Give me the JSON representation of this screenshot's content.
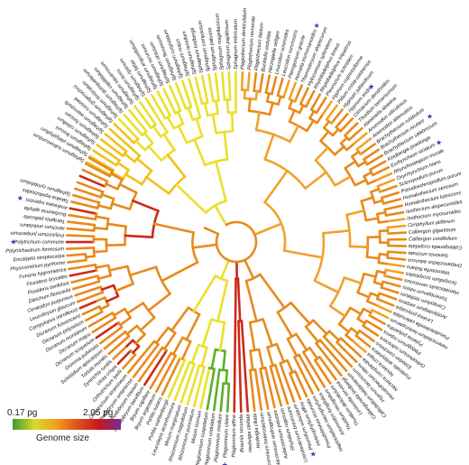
{
  "figure": {
    "legend": {
      "min": "0.17 pg",
      "max": "2.05 pg",
      "title": "Genome size",
      "gradient": [
        "#3a9c2e",
        "#d9d92a",
        "#f0a020",
        "#e05020",
        "#c41818",
        "#7a2a9a"
      ]
    },
    "star_symbol": "★",
    "branch_colors": {
      "orange": "#e88a1c",
      "gold": "#f2c218",
      "yellow": "#eae02a",
      "green": "#5bb02a",
      "red": "#cc2a1a",
      "lightorange": "#f2a12c"
    }
  },
  "taxa": [
    "Sphagnum subsecundum",
    "Sphagnum platyphyllum",
    "Sphagnum lescurii",
    "Sphagnum rubellum",
    "Sphagnum fuscum",
    "Sphagnum warnstorfii",
    "Sphagnum russowii",
    "Sphagnum girgensohnii",
    "Sphagnum fimbriatum",
    "Sphagnum quinquefarium",
    "Sphagnum capillifolium",
    "Sphagnum squarrosum",
    "Sphagnum teres",
    "Sphagnum riparium",
    "Sphagnum fallax",
    "Sphagnum angustifolium",
    "Sphagnum recurvum",
    "Sphagnum obtusum",
    "Sphagnum flexuosum",
    "Sphagnum cuspidatum",
    "Sphagnum majus",
    "Sphagnum tenellum",
    "Sphagnum lindbergii",
    "Sphagnum compactum",
    "Sphagnum palustre",
    "Sphagnum magellanicum",
    "Sphagnum papillosum",
    "Sphagnum imbricatum",
    "Plagiothecium denticulatum",
    "Plagiothecium nemorale",
    "Plagiothecium laetum",
    "Buckiella undulata",
    "Herzogiella seligeri",
    "Leucodon sciuroides",
    "Leucodon curvirostris",
    "Pterogonium gracile",
    "Homalia trichomanoides",
    "Thamnobryum alopecurum",
    "Hylocomium splendens",
    "Rhytidiadelphus loreus",
    "Rhytidiadelphus triquetrus",
    "Pleurozium schreberi",
    "Hypnum cupressiforme",
    "Ptilium crista-castrensis",
    "Hypnum jutlandicum",
    "Hypnum andoi",
    "Climacium dendroides",
    "Thuidium tamariscinum",
    "Abietinella abietina",
    "Anomodon viticulosus",
    "Anomodon attenuatus",
    "Brachythecium rutabulum",
    "Brachythecium rivulare",
    "Brachythecium salebrosum",
    "Kindbergia praelonga",
    "Eurhynchium striatum",
    "Rhynchostegium murale",
    "Oxyrrhynchium hians",
    "Scleropodium purum",
    "Pseudoscleropodium purum",
    "Homalothecium sericeum",
    "Homalothecium lutescens",
    "Isothecium alopecuroides",
    "Isothecium myosuroides",
    "Cirriphyllum piliferum",
    "Calliergon giganteum",
    "Calliergon cordifolium",
    "Calliergonella cuspidata",
    "Sanionia uncinata",
    "Drepanocladus aduncus",
    "Warnstorfia fluitans",
    "Scorpidium scorpioides",
    "Hamatocaulis vernicosus",
    "Tomentypnum nitens",
    "Campylium stellatum",
    "Amblystegium serpens",
    "Leskea polycarpa",
    "Pseudoleskeella catenulata",
    "Heterocladium heteropterum",
    "Pylaisia polyantha",
    "Platygyrium repens",
    "Orthothecium rufescens",
    "Entodon concinnus",
    "Fontinalis antipyretica",
    "Neckera crispa",
    "Neckera complanata",
    "Homalothecium nitens",
    "Hypnum lacunosum",
    "Callicladium haldanianum",
    "Calliergonella lindbergii",
    "Leskeella nervosa",
    "Thuidium delicatulum",
    "Thuidium recognitum",
    "Anomodon longifolius",
    "Haplocladium microphyllum",
    "Pseudoleskea incurvata",
    "Heterophyllium affine",
    "Pleuridium subulatum",
    "Loeskeobryum brevirostre",
    "Rhytidium rugosum",
    "Aulacomnium palustre",
    "Aulacomnium androgynum",
    "Aulacomnium heterostichum",
    "Hedwigia ciliata",
    "Hedwigia stellata",
    "Braunia secunda",
    "Plagiomnium affine",
    "Plagiomnium ciliare",
    "Plagiomnium medium",
    "Plagiomnium undulatum",
    "Plagiomnium cuspidatum",
    "Mnium hornum",
    "Rhizomnium punctatum",
    "Rhizomnium magnifolium",
    "Mnium marginatum",
    "Leucolepis acanthoneura",
    "Pohlia wahlenbergii",
    "Pohlia nutans",
    "Bryum argenteum",
    "Bryum capillare",
    "Rosulabryum laevifilum",
    "Rhodobryum roseum",
    "Rhodobryum ontariense",
    "Orthotrichum stramineum",
    "Orthotrichum lyellii",
    "Ulota crispa",
    "Syntrichia ruralis",
    "Tortula muralis",
    "Schistidium apocarpum",
    "Grimmia pulvinata",
    "Dicranum scoparium",
    "Dicranum majus",
    "Dicranum montanum",
    "Dicranum polysetum",
    "Dicranum fuscescens",
    "Campylopus introflexus",
    "Leucobryum glaucum",
    "Ceratodon purpureus",
    "Ditrichum flexicaule",
    "Fissidens taxifolius",
    "Fissidens bryoides",
    "Funaria hygrometrica",
    "Physcomitrium pyriforme",
    "Encalypta streptocarpa",
    "Polytrichastrum formosum",
    "Polytrichum commune",
    "Polytrichum juniperinum",
    "Atrichum undulatum",
    "Tetraphis pellucida",
    "Buxbaumia aphylla",
    "Andreaea rupestris",
    "Takakia lepidozioides",
    "Sphagnum cymbifolium"
  ],
  "starred": [
    "Polytrichum commune",
    "Andreaea rupestris",
    "Plagiomnium ciliare",
    "Orthotrichum stramineum",
    "Pleuridium subulatum",
    "Brachythecium rivulare",
    "Eurhynchium striatum",
    "Hypnum andoi",
    "Homalia trichomanoides",
    "Calliergonella cuspidata"
  ]
}
